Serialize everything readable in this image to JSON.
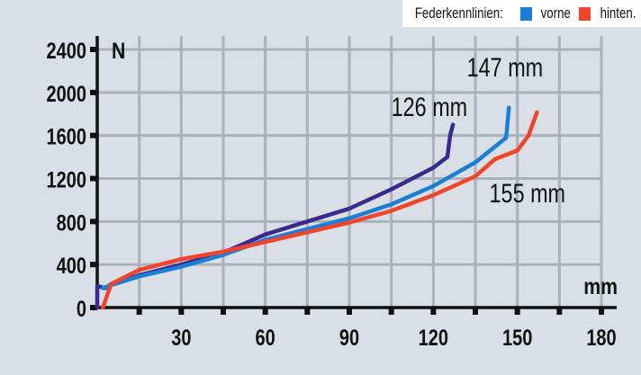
{
  "legend": {
    "title": "Federkennlinien:",
    "items": [
      {
        "label": "vorne",
        "color": "#1a7fd4"
      },
      {
        "label": "hinten.",
        "color": "#f2442b"
      }
    ]
  },
  "chart_data": {
    "type": "line",
    "title": "Federkennlinien",
    "xlabel": "mm",
    "ylabel": "N",
    "xlim": [
      0,
      180
    ],
    "ylim": [
      0,
      2400
    ],
    "xticks": [
      15,
      30,
      45,
      60,
      75,
      90,
      105,
      120,
      135,
      150,
      165,
      180
    ],
    "xtick_labels": [
      "30",
      "60",
      "90",
      "120",
      "150",
      "180"
    ],
    "xtick_label_values": [
      30,
      60,
      90,
      120,
      150,
      180
    ],
    "yticks": [
      0,
      400,
      800,
      1200,
      1600,
      2000,
      2400
    ],
    "ytick_labels": [
      "0",
      "400",
      "800",
      "1200",
      "1600",
      "2000",
      "2400"
    ],
    "grid": true,
    "series": [
      {
        "name": "126 mm",
        "color": "#3a2a8e",
        "x": [
          0,
          0,
          3,
          5,
          15,
          30,
          45,
          60,
          75,
          90,
          105,
          120,
          125,
          126,
          127
        ],
        "y": [
          0,
          200,
          180,
          220,
          300,
          400,
          510,
          680,
          800,
          920,
          1100,
          1300,
          1400,
          1600,
          1700
        ]
      },
      {
        "name": "147 mm",
        "color": "#1a7fd4",
        "x": [
          2,
          5,
          15,
          30,
          45,
          60,
          75,
          90,
          105,
          120,
          135,
          146,
          147
        ],
        "y": [
          180,
          210,
          290,
          380,
          490,
          630,
          730,
          830,
          960,
          1130,
          1350,
          1580,
          1860
        ]
      },
      {
        "name": "155 mm",
        "color": "#f2442b",
        "x": [
          2,
          5,
          15,
          30,
          45,
          60,
          75,
          90,
          105,
          120,
          135,
          142,
          150,
          154,
          157
        ],
        "y": [
          0,
          220,
          350,
          450,
          520,
          610,
          700,
          790,
          900,
          1045,
          1220,
          1380,
          1460,
          1600,
          1815
        ]
      }
    ],
    "annotations": [
      {
        "text": "126 mm",
        "x": 105,
        "y": 1780
      },
      {
        "text": "147 mm",
        "x": 132,
        "y": 2150
      },
      {
        "text": "155 mm",
        "x": 140,
        "y": 980
      }
    ]
  }
}
